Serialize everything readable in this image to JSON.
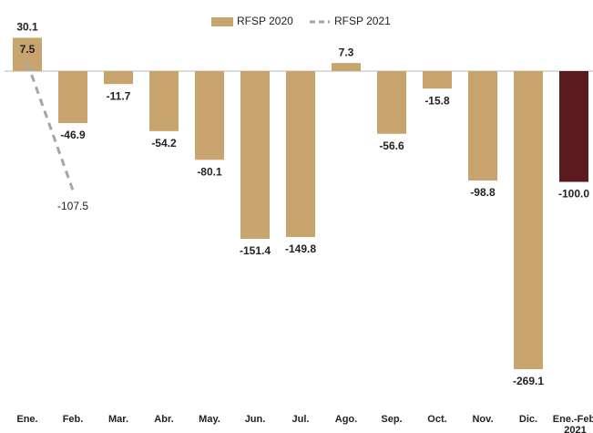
{
  "chart_data": {
    "type": "bar",
    "categories": [
      "Ene.",
      "Feb.",
      "Mar.",
      "Abr.",
      "May.",
      "Jun.",
      "Jul.",
      "Ago.",
      "Sep.",
      "Oct.",
      "Nov.",
      "Dic.",
      "Ene.-Feb 2021"
    ],
    "series": [
      {
        "name": "RFSP 2020",
        "type": "bar",
        "color": "#c8a46e",
        "colors": [
          "#c8a46e",
          "#c8a46e",
          "#c8a46e",
          "#c8a46e",
          "#c8a46e",
          "#c8a46e",
          "#c8a46e",
          "#c8a46e",
          "#c8a46e",
          "#c8a46e",
          "#c8a46e",
          "#c8a46e",
          "#5a1a1e"
        ],
        "values": [
          30.1,
          -46.9,
          -11.7,
          -54.2,
          -80.1,
          -151.4,
          -149.8,
          7.3,
          -56.6,
          -15.8,
          -98.8,
          -269.1,
          -100.0
        ],
        "value_labels": [
          "30.1",
          "-46.9",
          "-11.7",
          "-54.2",
          "-80.1",
          "-151.4",
          "-149.8",
          "7.3",
          "-56.6",
          "-15.8",
          "-98.8",
          "-269.1",
          "-100.0"
        ]
      },
      {
        "name": "RFSP 2021",
        "type": "line",
        "color": "#a6a6a6",
        "dashed": true,
        "values": [
          7.5,
          -107.5,
          null,
          null,
          null,
          null,
          null,
          null,
          null,
          null,
          null,
          null,
          null
        ]
      }
    ],
    "ylim": [
      -290,
      40
    ]
  }
}
